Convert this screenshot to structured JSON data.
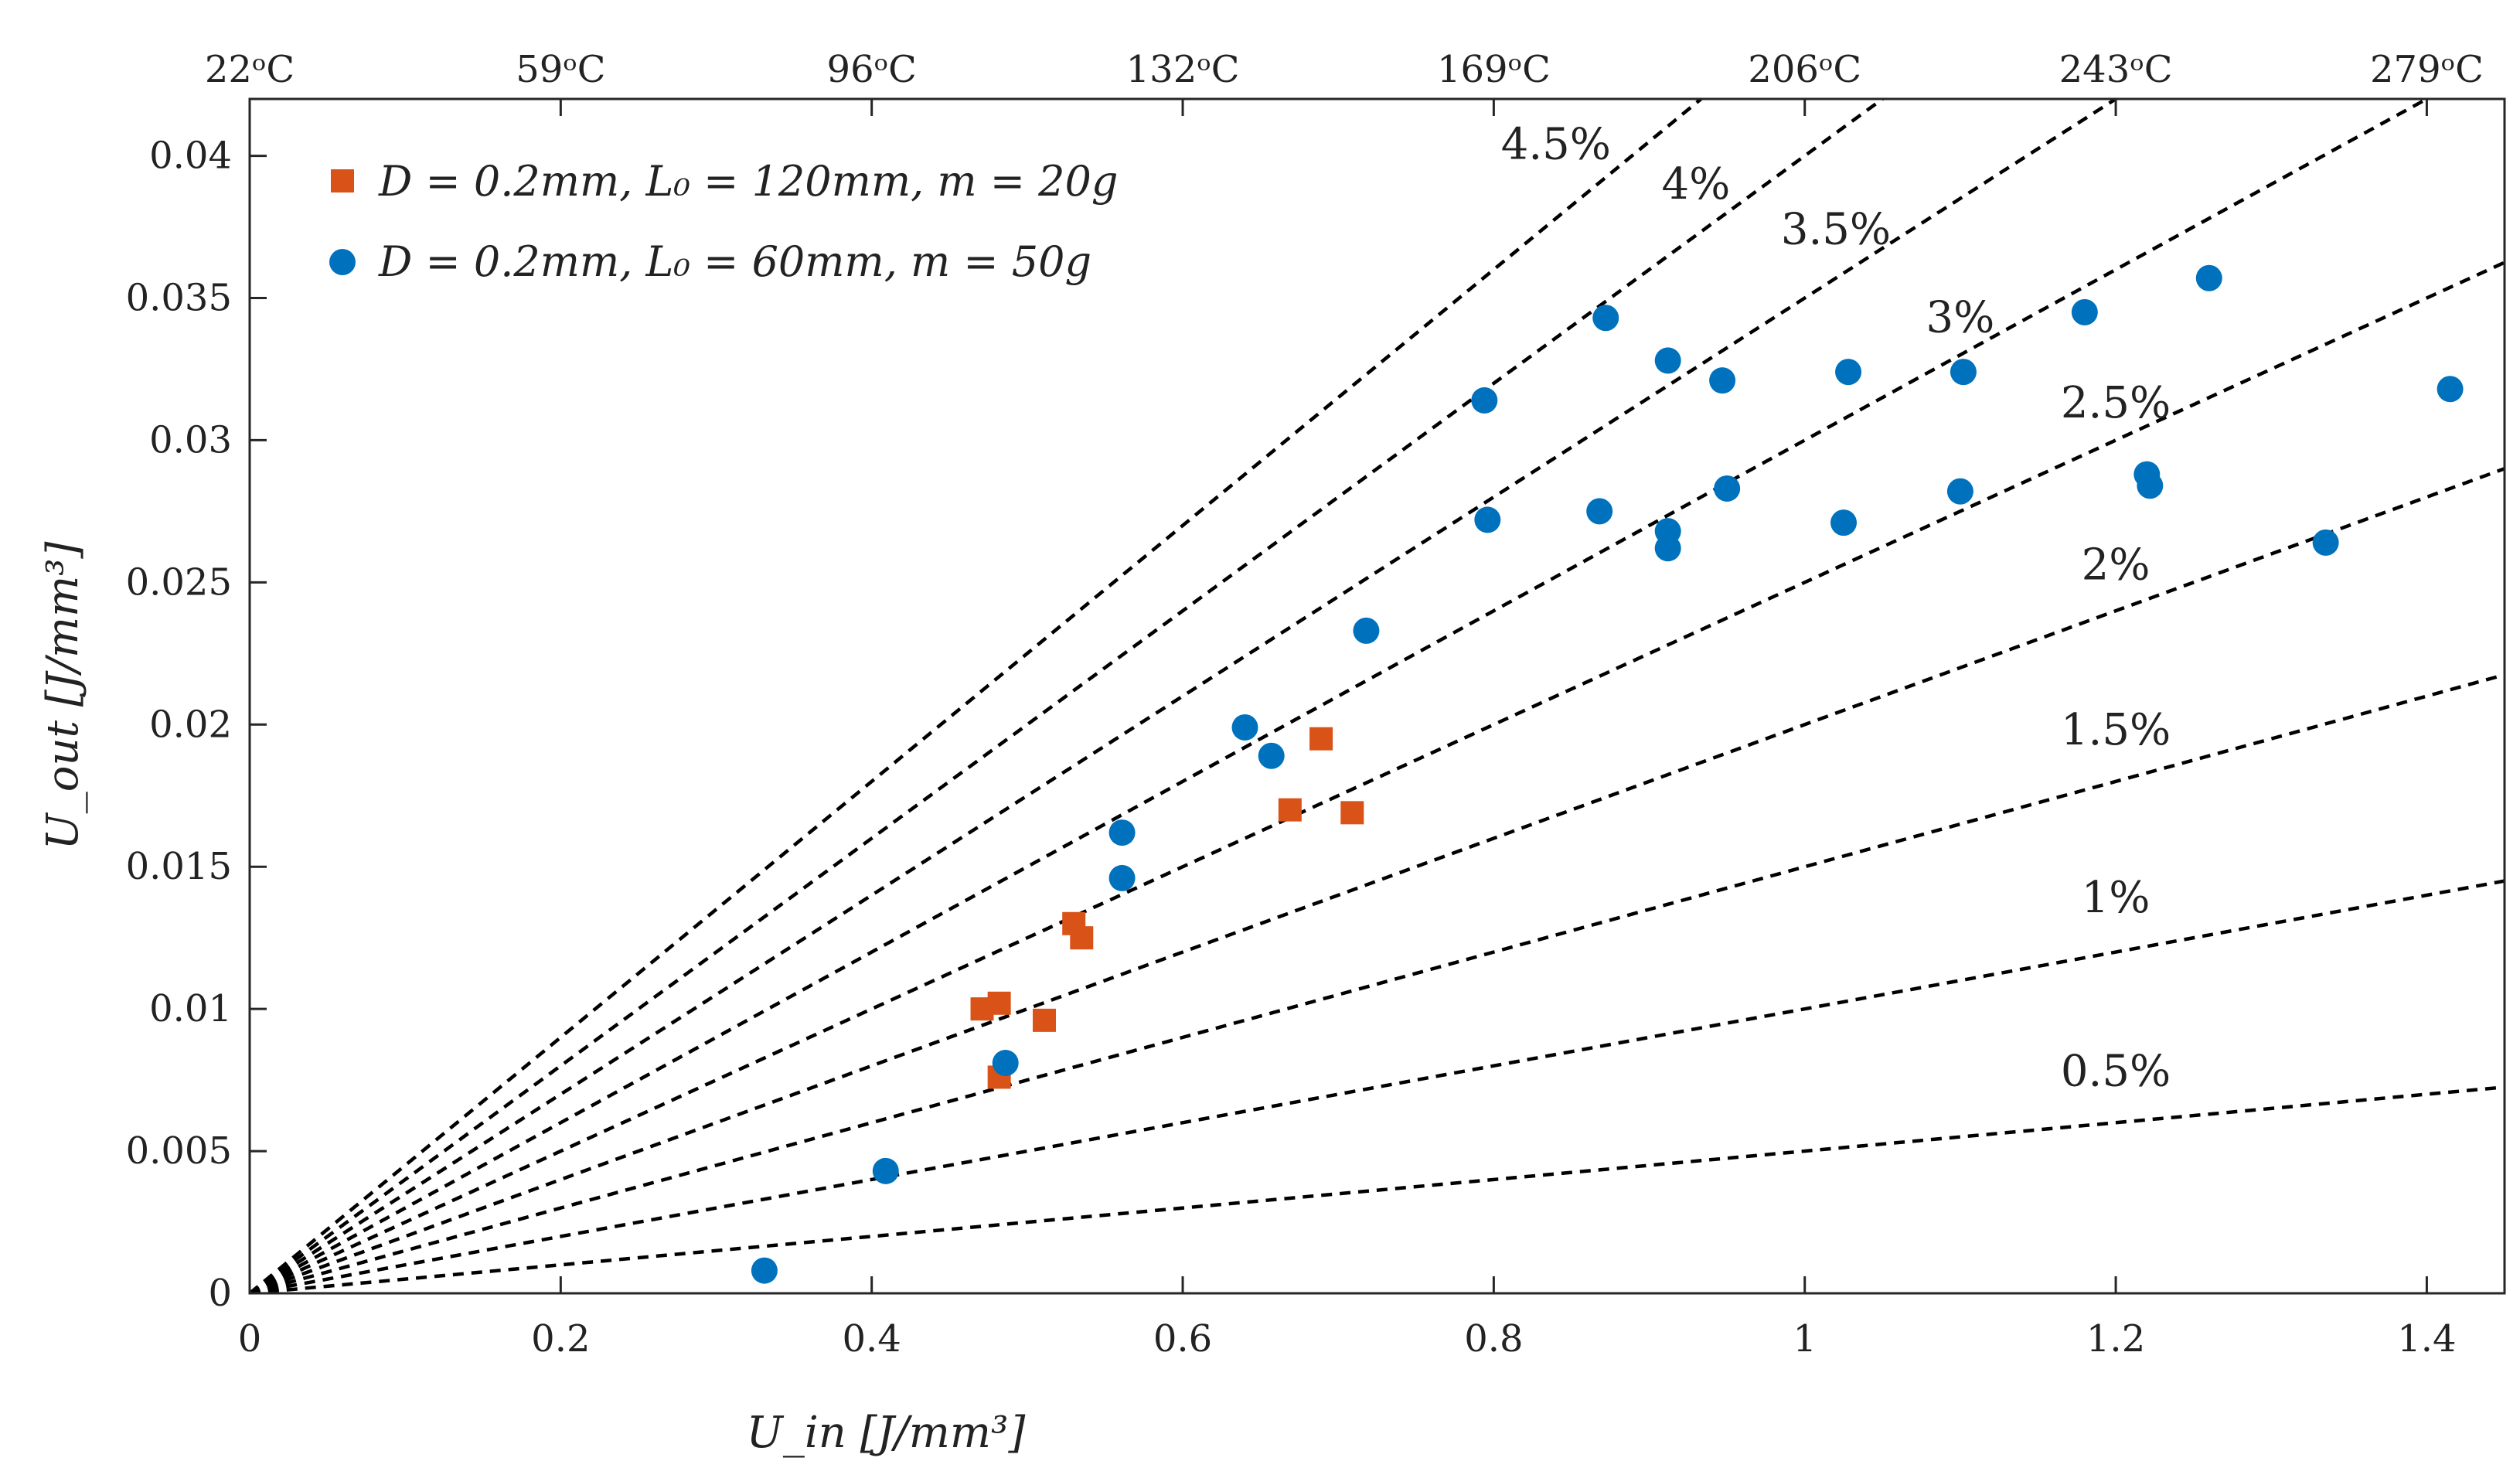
{
  "chart_data": {
    "type": "scatter",
    "xlabel": "U_in [J/mm³]",
    "ylabel": "U_out [J/mm³]",
    "xlim": [
      0,
      1.45
    ],
    "ylim": [
      0,
      0.042
    ],
    "x_ticks": [
      0,
      0.2,
      0.4,
      0.6,
      0.8,
      1,
      1.2,
      1.4
    ],
    "x_tick_labels": [
      "0",
      "0.2",
      "0.4",
      "0.6",
      "0.8",
      "1",
      "1.2",
      "1.4"
    ],
    "y_ticks": [
      0,
      0.005,
      0.01,
      0.015,
      0.02,
      0.025,
      0.03,
      0.035,
      0.04
    ],
    "y_tick_labels": [
      "0",
      "0.005",
      "0.01",
      "0.015",
      "0.02",
      "0.025",
      "0.03",
      "0.035",
      "0.04"
    ],
    "top_axis": {
      "ticks": [
        0,
        0.2,
        0.4,
        0.6,
        0.8,
        1,
        1.2,
        1.4
      ],
      "labels": [
        "22ᵒC",
        "59ᵒC",
        "96ᵒC",
        "132ᵒC",
        "169ᵒC",
        "206ᵒC",
        "243ᵒC",
        "279ᵒC"
      ]
    },
    "grid": false,
    "legend_position": "top-left",
    "colors": {
      "series1": "#D95319",
      "series2": "#0072BD",
      "reference_lines": "#000000"
    },
    "reference_lines": [
      {
        "label": "0.5%",
        "slope": 0.005,
        "label_x": 1.2,
        "label_y": 0.0073
      },
      {
        "label": "1%",
        "slope": 0.01,
        "label_x": 1.2,
        "label_y": 0.0134
      },
      {
        "label": "1.5%",
        "slope": 0.015,
        "label_x": 1.2,
        "label_y": 0.0193
      },
      {
        "label": "2%",
        "slope": 0.02,
        "label_x": 1.2,
        "label_y": 0.0251
      },
      {
        "label": "2.5%",
        "slope": 0.025,
        "label_x": 1.2,
        "label_y": 0.0308
      },
      {
        "label": "3%",
        "slope": 0.03,
        "label_x": 1.1,
        "label_y": 0.0338
      },
      {
        "label": "3.5%",
        "slope": 0.035,
        "label_x": 1.02,
        "label_y": 0.0369
      },
      {
        "label": "4%",
        "slope": 0.04,
        "label_x": 0.93,
        "label_y": 0.0385
      },
      {
        "label": "4.5%",
        "slope": 0.045,
        "label_x": 0.84,
        "label_y": 0.0399
      }
    ],
    "series": [
      {
        "name": "D = 0.2mm, L₀ = 120mm, m = 20g",
        "marker": "square",
        "x": [
          0.471,
          0.482,
          0.482,
          0.511,
          0.53,
          0.535,
          0.669,
          0.689,
          0.709
        ],
        "y": [
          0.01,
          0.0102,
          0.0076,
          0.0096,
          0.013,
          0.0125,
          0.017,
          0.0195,
          0.0169
        ]
      },
      {
        "name": "D = 0.2mm, L₀ = 60mm, m = 50g",
        "marker": "circle",
        "x": [
          0.331,
          0.409,
          0.486,
          0.561,
          0.561,
          0.64,
          0.657,
          0.718,
          0.794,
          0.796,
          0.868,
          0.872,
          0.912,
          0.912,
          0.912,
          0.947,
          0.95,
          1.025,
          1.028,
          1.1,
          1.102,
          1.18,
          1.22,
          1.222,
          1.26,
          1.335,
          1.415
        ],
        "y": [
          0.0008,
          0.0043,
          0.0081,
          0.0146,
          0.0162,
          0.0199,
          0.0189,
          0.0233,
          0.0314,
          0.0272,
          0.0275,
          0.0343,
          0.0328,
          0.0268,
          0.0262,
          0.0321,
          0.0283,
          0.0271,
          0.0324,
          0.0282,
          0.0324,
          0.0345,
          0.0288,
          0.0284,
          0.0357,
          0.0264,
          0.0318
        ]
      }
    ]
  }
}
